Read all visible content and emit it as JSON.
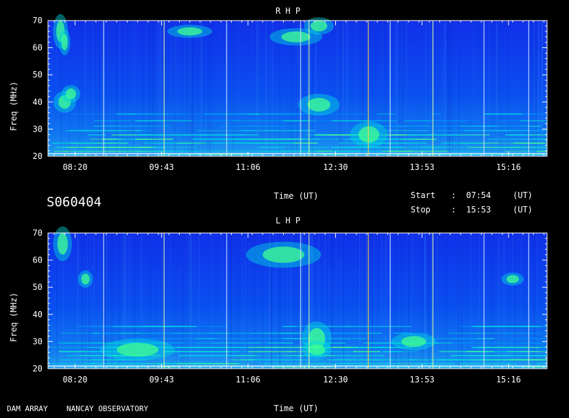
{
  "observation_id": "S060404",
  "footer": {
    "instrument": "DAM ARRAY",
    "observatory": "NANCAY OBSERVATORY"
  },
  "time_info": {
    "start_label": "Start",
    "start_sep": ":",
    "start_value": "07:54",
    "start_unit": "(UT)",
    "stop_label": "Stop",
    "stop_sep": ":",
    "stop_value": "15:53",
    "stop_unit": "(UT)"
  },
  "chart_data": [
    {
      "type": "heatmap",
      "title": "R H P",
      "xlabel": "Time (UT)",
      "ylabel": "Freq (MHz)",
      "x_ticks": [
        "08:20",
        "09:43",
        "11:06",
        "12:30",
        "13:53",
        "15:16"
      ],
      "y_ticks": [
        20,
        30,
        40,
        50,
        60,
        70
      ],
      "xlim": [
        "07:54",
        "15:53"
      ],
      "ylim": [
        20,
        70
      ],
      "colorscale": [
        "#0000d0",
        "#0040f0",
        "#0090f8",
        "#00d8e0",
        "#40ff90",
        "#f0ff40",
        "#ff3030"
      ]
    },
    {
      "type": "heatmap",
      "title": "L H P",
      "xlabel": "Time (UT)",
      "ylabel": "Freq (MHz)",
      "x_ticks": [
        "08:20",
        "09:43",
        "11:06",
        "12:30",
        "13:53",
        "15:16"
      ],
      "y_ticks": [
        20,
        30,
        40,
        50,
        60,
        70
      ],
      "xlim": [
        "07:54",
        "15:53"
      ],
      "ylim": [
        20,
        70
      ],
      "colorscale": [
        "#0000d0",
        "#0040f0",
        "#0090f8",
        "#00d8e0",
        "#40ff90",
        "#f0ff40",
        "#ff3030"
      ]
    }
  ]
}
